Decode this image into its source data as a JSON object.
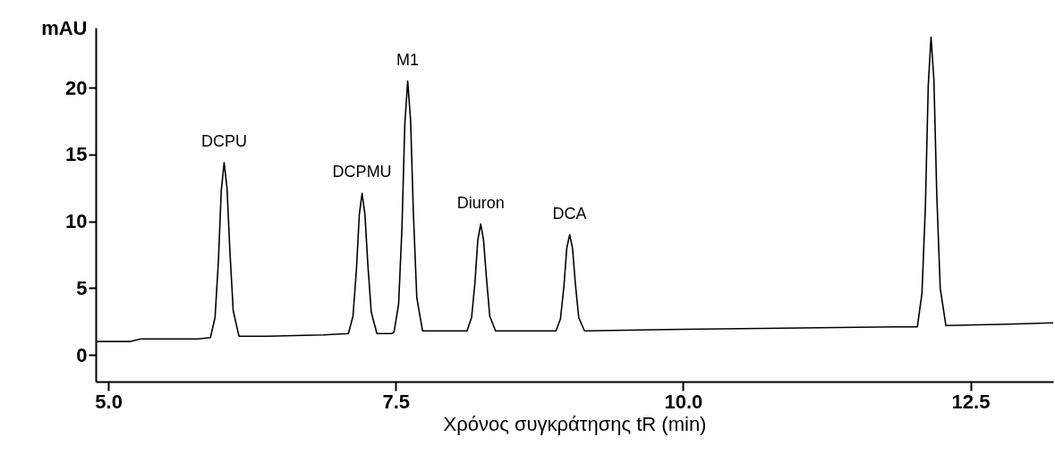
{
  "chart_data": {
    "type": "line",
    "xlabel": "Χρόνος συγκράτησης tR (min)",
    "ylabel": "mAU",
    "xlim": [
      4.89,
      13.22
    ],
    "ylim": [
      -2,
      24.5
    ],
    "xticks": [
      {
        "value": 5,
        "label": "5.0"
      },
      {
        "value": 7.5,
        "label": "7.5"
      },
      {
        "value": 10,
        "label": "10.0"
      },
      {
        "value": 12.5,
        "label": "12.5"
      }
    ],
    "yticks": [
      0,
      5,
      10,
      15,
      20
    ],
    "series": [
      {
        "color": "#000000",
        "x": [
          4.89,
          5.184,
          5.283,
          5.481,
          5.779,
          5.888,
          5.928,
          5.957,
          5.982,
          6.007,
          6.032,
          6.057,
          6.086,
          6.136,
          6.374,
          6.87,
          7.088,
          7.128,
          7.158,
          7.183,
          7.207,
          7.232,
          7.257,
          7.287,
          7.336,
          7.465,
          7.485,
          7.525,
          7.554,
          7.579,
          7.604,
          7.629,
          7.654,
          7.683,
          7.733,
          8.06,
          8.12,
          8.16,
          8.189,
          8.214,
          8.239,
          8.264,
          8.289,
          8.318,
          8.368,
          8.755,
          8.894,
          8.933,
          8.963,
          8.988,
          9.013,
          9.038,
          9.062,
          9.092,
          9.142,
          9.846,
          10.838,
          11.83,
          12.038,
          12.078,
          12.108,
          12.133,
          12.157,
          12.182,
          12.207,
          12.237,
          12.286,
          12.822,
          13.22
        ],
        "values": [
          1.0,
          1.0,
          1.2,
          1.2,
          1.2,
          1.3,
          2.8,
          7.0,
          12.3,
          14.4,
          12.5,
          7.8,
          3.3,
          1.4,
          1.4,
          1.5,
          1.6,
          2.9,
          6.4,
          10.5,
          12.1,
          10.5,
          6.8,
          3.2,
          1.6,
          1.6,
          1.7,
          3.8,
          9.5,
          17.3,
          20.5,
          17.6,
          10.5,
          4.3,
          1.8,
          1.8,
          1.8,
          2.8,
          5.4,
          8.6,
          9.8,
          8.6,
          5.8,
          2.9,
          1.8,
          1.8,
          1.8,
          2.7,
          5.1,
          8.0,
          9.0,
          8.0,
          5.4,
          2.8,
          1.8,
          1.9,
          2.0,
          2.1,
          2.1,
          4.6,
          11.1,
          20.2,
          23.8,
          20.6,
          12.0,
          5.0,
          2.2,
          2.3,
          2.4
        ]
      }
    ],
    "annotations": [
      {
        "text": "DCPU",
        "x": 6.007,
        "y": 14.4
      },
      {
        "text": "DCPMU",
        "x": 7.207,
        "y": 12.1
      },
      {
        "text": "M1",
        "x": 7.604,
        "y": 20.5
      },
      {
        "text": "Diuron",
        "x": 8.239,
        "y": 9.8
      },
      {
        "text": "DCA",
        "x": 9.013,
        "y": 9.0
      }
    ]
  }
}
